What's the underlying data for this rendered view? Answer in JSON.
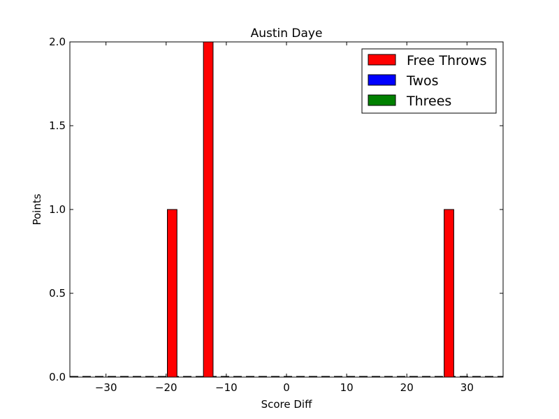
{
  "chart_data": {
    "type": "bar",
    "title": "Austin Daye",
    "xlabel": "Score Diff",
    "ylabel": "Points",
    "xlim": [
      -36,
      36
    ],
    "ylim": [
      0,
      2
    ],
    "x_ticks": [
      -30,
      -20,
      -10,
      0,
      10,
      20,
      30
    ],
    "x_tick_labels": [
      "−30",
      "−20",
      "−10",
      "0",
      "10",
      "20",
      "30"
    ],
    "y_ticks": [
      0,
      0.5,
      1,
      1.5,
      2
    ],
    "y_tick_labels": [
      "0.0",
      "0.5",
      "1.0",
      "1.5",
      "2.0"
    ],
    "bar_width": 1.6,
    "legend_position": "top-right",
    "series": [
      {
        "name": "Free Throws",
        "color": "#ff0000",
        "x": [
          -19,
          -13,
          27
        ],
        "values": [
          1,
          2,
          1
        ]
      },
      {
        "name": "Twos",
        "color": "#0000ff",
        "x": [],
        "values": []
      },
      {
        "name": "Threes",
        "color": "#008000",
        "x": [],
        "values": []
      }
    ]
  }
}
